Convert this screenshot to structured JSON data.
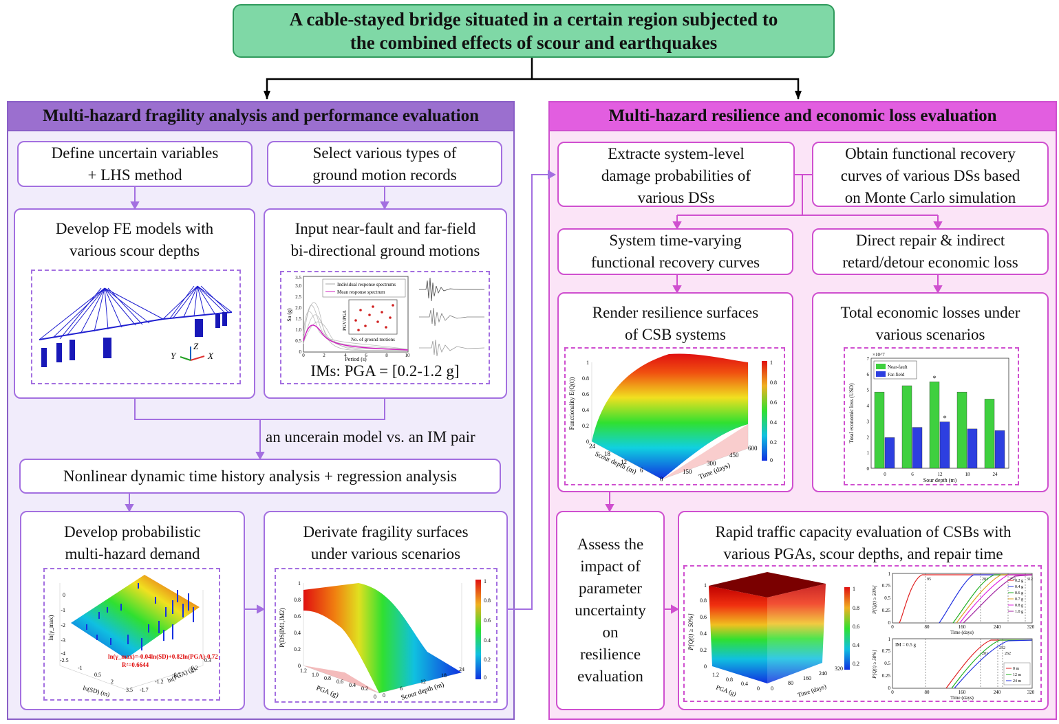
{
  "title": {
    "line1": "A cable-stayed bridge situated in a certain region subjected to",
    "line2": "the combined effects of scour and earthquakes"
  },
  "left": {
    "header": "Multi-hazard fragility analysis and performance evaluation",
    "define_1": "Define uncertain variables",
    "define_2": "+ LHS method",
    "select_1": "Select various types of",
    "select_2": "ground  motion records",
    "fe_1": "Develop FE models with",
    "fe_2": "various scour depths",
    "input_1": "Input near-fault and far-field",
    "input_2": "bi-directional ground motions",
    "ims": "IMs: PGA = [0.2-1.2 g]",
    "pair_label": "an uncerain model vs. an IM pair",
    "nonlinear": "Nonlinear dynamic time history analysis + regression analysis",
    "demand_1": "Develop probabilistic",
    "demand_2": "multi-hazard demand",
    "frag_1": "Derivate fragility surfaces",
    "frag_2": "under various scenarios"
  },
  "right": {
    "header": "Multi-hazard resilience and economic loss evaluation",
    "extract_1": "Extracte system-level",
    "extract_2": "damage probabilities of",
    "extract_3": "various DSs",
    "obtain_1": "Obtain functional recovery",
    "obtain_2": "curves of various DSs based",
    "obtain_3": "on Monte Carlo simulation",
    "system_1": "System time-varying",
    "system_2": "functional recovery curves",
    "direct_1": "Direct repair & indirect",
    "direct_2": "retard/detour economic loss",
    "render_1": "Render resilience surfaces",
    "render_2": "of  CSB systems",
    "total_1": "Total economic losses under",
    "total_2": "various scenarios",
    "assess": [
      "Assess the",
      "impact of",
      "parameter",
      "uncertainty",
      "on",
      "resilience",
      "evaluation"
    ],
    "rapid_1": "Rapid  traffic capacity evaluation of CSBs with",
    "rapid_2": "various PGAs, scour depths, and repair time"
  },
  "figures": {
    "axes_labels": {
      "x": "X",
      "y": "Y",
      "z": "Z"
    },
    "spectra": {
      "legend_individual": "Individual response spectrums",
      "legend_mean": "Mean response spectrum",
      "ylabel": "Sa (g)",
      "xlabel": "Period (s)",
      "inset_xlabel": "No. of ground motions",
      "inset_ylabel": "PGV/PGA",
      "x_ticks": [
        "0",
        "2",
        "4",
        "6",
        "8",
        "10"
      ],
      "y_ticks": [
        "0",
        "0.5",
        "1.0",
        "1.5",
        "2.0",
        "2.5",
        "3.0",
        "3.5"
      ]
    },
    "demand": {
      "zlabel": "ln(γ_max)",
      "xlabel": "ln(SD) (m)",
      "ylabel": "ln(PGA) (g)",
      "equation": "ln(γ_max)=-0.04ln(SD)+0.82ln(PGA)-0.72",
      "r2": "R²=0.6644",
      "z_ticks": [
        "0",
        "-1",
        "-2",
        "-3",
        "-4"
      ],
      "x_ticks": [
        "-2.5",
        "-1",
        "0.5",
        "2",
        "3.5"
      ],
      "y_ticks": [
        "0.3",
        "-0.2",
        "-0.7",
        "-1.2",
        "-1.7"
      ]
    },
    "fragility": {
      "zlabel": "P(DS|IM1,IM2)",
      "xlabel": "PGA (g)",
      "ylabel": "Scour depth (m)",
      "z_ticks": [
        "0",
        "0.2",
        "0.4",
        "0.6",
        "0.8",
        "1"
      ],
      "x_ticks": [
        "1.2",
        "1.0",
        "0.8",
        "0.6",
        "0.4",
        "0.2",
        "0"
      ],
      "y_ticks": [
        "0",
        "6",
        "12",
        "18",
        "24"
      ],
      "cbar_ticks": [
        "1",
        "0.8",
        "0.6",
        "0.4",
        "0.2",
        "0"
      ]
    },
    "resilience": {
      "zlabel": "Functionality E(Q(t))",
      "xlabel": "Scour depth (m)",
      "ylabel": "Time (days)",
      "x_ticks": [
        "24",
        "18",
        "12",
        "6",
        "0"
      ],
      "y_ticks": [
        "150",
        "300",
        "450",
        "600"
      ],
      "z_ticks": [
        "0",
        "0.2",
        "0.4",
        "0.6",
        "0.8",
        "1"
      ],
      "cbar_ticks": [
        "1",
        "0.8",
        "0.6",
        "0.4",
        "0.2",
        "0"
      ]
    },
    "traffic": {
      "surf_zlabel": "P[Q(t) ≥ 50%]",
      "surf_xlabel": "PGA (g)",
      "surf_ylabel": "Time (days)",
      "surf_x_ticks": [
        "1.2",
        "0.8",
        "0.4",
        "0"
      ],
      "surf_y_ticks": [
        "0",
        "80",
        "160",
        "240",
        "320"
      ],
      "surf_z_ticks": [
        "0",
        "0.2",
        "0.4",
        "0.6",
        "0.8",
        "1"
      ],
      "cbar_ticks": [
        "1",
        "0.8",
        "0.6",
        "0.4",
        "0.2"
      ],
      "top_legend": [
        "0.2 g",
        "0.4 g",
        "0.6 g",
        "0.7 g",
        "0.8 g",
        "1.0 g"
      ],
      "bottom_legend": [
        "0 m",
        "12 m",
        "24 m"
      ],
      "bottom_note": "IM = 0.5 g",
      "xlabel": "Time (days)",
      "ylabel": "P[Q(t) ≥ 50%]",
      "x_ticks": [
        "0",
        "80",
        "160",
        "240",
        "320"
      ],
      "y_ticks": [
        "0",
        "0.25",
        "0.5",
        "0.75",
        "1"
      ],
      "marks_top": [
        "95",
        "201",
        "257",
        "312"
      ],
      "marks_bottom": [
        "201",
        "252",
        "262"
      ]
    },
    "colors": {
      "near_fault": "#3fd03f",
      "far_field": "#2d3fe0",
      "surface_top": "#c00000",
      "surface_bottom": "#1030e0"
    }
  },
  "chart_data": {
    "type": "bar",
    "ylabel": "Total economic loss (USD)",
    "y_multiplier": "×10^7",
    "xlabel": "Sour depth (m)",
    "categories": [
      "0",
      "6",
      "12",
      "18",
      "24"
    ],
    "series": [
      {
        "name": "Near-fault",
        "values": [
          4.85,
          5.25,
          5.5,
          4.85,
          4.4
        ]
      },
      {
        "name": "Far-field",
        "values": [
          1.95,
          2.6,
          2.95,
          2.5,
          2.4
        ]
      }
    ],
    "ylim": [
      0,
      7
    ],
    "y_ticks": [
      "0",
      "1",
      "2",
      "3",
      "4",
      "5",
      "6",
      "7"
    ],
    "asterisk_marks": [
      "*",
      "*"
    ],
    "legend_position": "top-left"
  }
}
